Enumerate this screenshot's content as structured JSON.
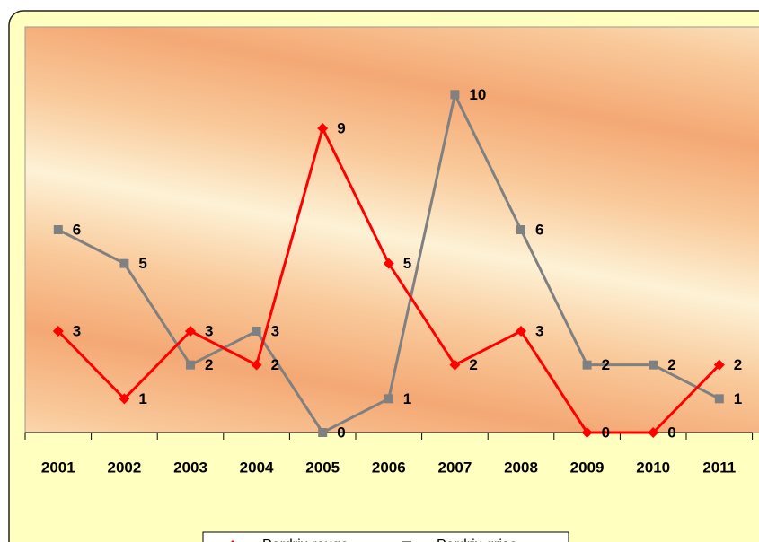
{
  "chart_data": {
    "type": "line",
    "categories": [
      "2001",
      "2002",
      "2003",
      "2004",
      "2005",
      "2006",
      "2007",
      "2008",
      "2009",
      "2010",
      "2011"
    ],
    "series": [
      {
        "name": "Perdrix rouge",
        "color": "#ff0000",
        "marker": "diamond",
        "values": [
          3,
          1,
          3,
          2,
          9,
          5,
          2,
          3,
          0,
          0,
          2
        ]
      },
      {
        "name": "Perdrix grise",
        "color": "#808080",
        "marker": "square",
        "values": [
          6,
          5,
          2,
          3,
          0,
          1,
          10,
          6,
          2,
          2,
          1
        ]
      }
    ],
    "ylim": [
      0,
      12
    ],
    "data_labels": true,
    "legend": "bottom"
  }
}
